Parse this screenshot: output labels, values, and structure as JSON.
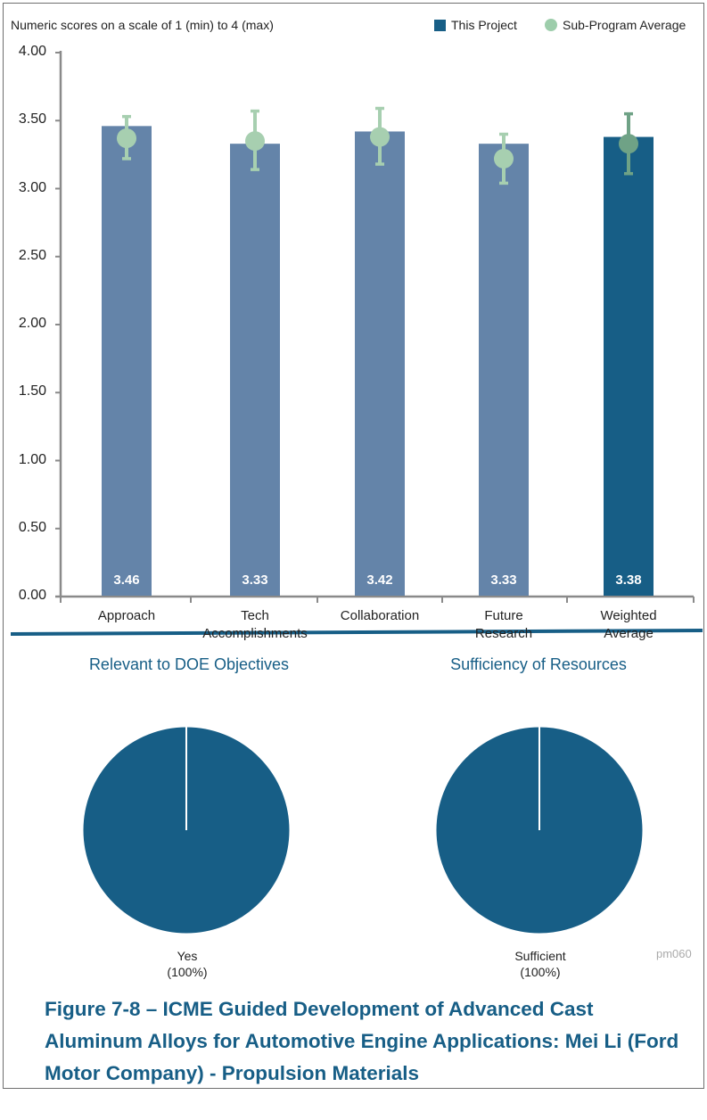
{
  "subtitle": "Numeric scores on a scale of 1 (min) to 4 (max)",
  "legend": {
    "project": "This Project",
    "average": "Sub-Program Average"
  },
  "colors": {
    "bar": "#6484a9",
    "bar_highlight": "#175e86",
    "marker": "#a7cfb0",
    "marker_highlight": "#6fa286",
    "pie": "#175e86",
    "divider": "#175e86"
  },
  "chart_data": [
    {
      "type": "bar",
      "title": "",
      "xlabel": "",
      "ylabel": "",
      "ylim": [
        0,
        4
      ],
      "yticks": [
        "0.00",
        "0.50",
        "1.00",
        "1.50",
        "2.00",
        "2.50",
        "3.00",
        "3.50",
        "4.00"
      ],
      "categories": [
        "Approach",
        "Tech\nAccomplishments",
        "Collaboration",
        "Future\nResearch",
        "Weighted\nAverage"
      ],
      "series": [
        {
          "name": "This Project",
          "values": [
            3.46,
            3.33,
            3.42,
            3.33,
            3.38
          ],
          "value_labels": [
            "3.46",
            "3.33",
            "3.42",
            "3.33",
            "3.38"
          ]
        },
        {
          "name": "Sub-Program Average",
          "values": [
            3.37,
            3.35,
            3.38,
            3.22,
            3.33
          ],
          "error_low": [
            3.22,
            3.14,
            3.18,
            3.04,
            3.11
          ],
          "error_high": [
            3.53,
            3.57,
            3.59,
            3.4,
            3.55
          ]
        }
      ],
      "highlight_category": "Weighted\nAverage",
      "grid": false,
      "legend_position": "top-right"
    },
    {
      "type": "pie",
      "title": "Relevant to DOE Objectives",
      "labels": [
        "Yes\n(100%)"
      ],
      "values": [
        100
      ]
    },
    {
      "type": "pie",
      "title": "Sufficiency of  Resources",
      "labels": [
        "Sufficient\n(100%)"
      ],
      "values": [
        100
      ]
    }
  ],
  "code": "pm060",
  "caption": "Figure 7-8 – ICME Guided Development of Advanced Cast Aluminum Alloys for Automotive Engine Applications: Mei Li (Ford Motor Company) - Propulsion Materials"
}
